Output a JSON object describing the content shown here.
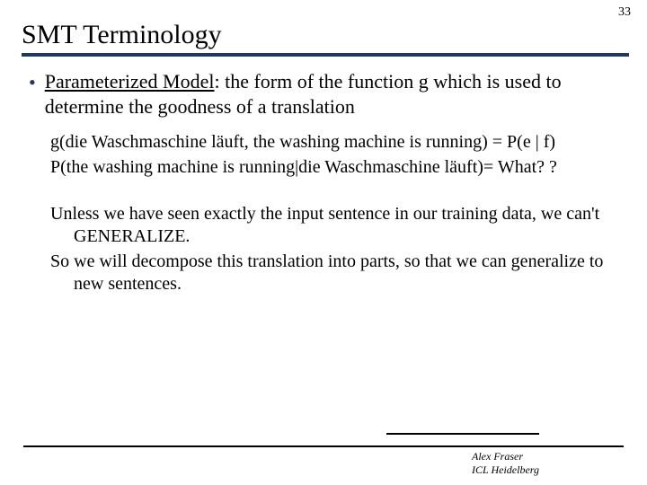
{
  "page_number": "33",
  "title": "SMT Terminology",
  "accent_color": "#1f3864",
  "bullet": {
    "term": "Parameterized Model",
    "rest": ":  the form of the function g which is used to determine the goodness of a translation"
  },
  "block1": {
    "l1": "g(die Waschmaschine läuft, the washing machine is running) = P(e | f)",
    "l2": "P(the washing machine is running|die Waschmaschine läuft)= What? ?"
  },
  "block2": {
    "l1": "Unless we have seen exactly the input sentence in our training data, we can't GENERALIZE.",
    "l2": "So we will decompose this translation into parts, so that we can generalize to new sentences."
  },
  "footer": {
    "author": "Alex Fraser",
    "affil": "ICL Heidelberg"
  }
}
